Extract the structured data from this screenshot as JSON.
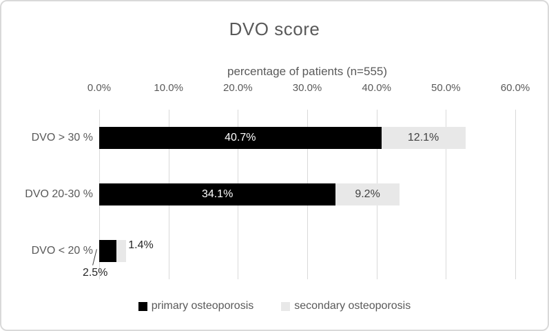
{
  "frame": {
    "background": "#ffffff",
    "border_color": "#d9d9d9"
  },
  "chart_data": {
    "type": "bar",
    "orientation": "horizontal",
    "stacked": true,
    "title": "DVO score",
    "x_axis_title": "percentage of patients (n=555)",
    "categories": [
      "DVO > 30 %",
      "DVO 20-30 %",
      "DVO < 20 %"
    ],
    "series": [
      {
        "name": "primary osteoporosis",
        "color": "#000000",
        "label_color": "#ffffff",
        "values": [
          40.7,
          34.1,
          2.5
        ],
        "labels": [
          "40.7%",
          "34.1%",
          "2.5%"
        ]
      },
      {
        "name": "secondary osteoporosis",
        "color": "#e8e8e8",
        "label_color": "#404040",
        "values": [
          12.1,
          9.2,
          1.4
        ],
        "labels": [
          "12.1%",
          "9.2%",
          "1.4%"
        ]
      }
    ],
    "x_ticks": [
      "0.0%",
      "10.0%",
      "20.0%",
      "30.0%",
      "40.0%",
      "50.0%",
      "60.0%"
    ],
    "xlim": [
      0,
      60
    ],
    "gridlines": "vertical",
    "grid_color": "#d9d9d9",
    "axis_position": "top",
    "legend_position": "bottom",
    "text_color": "#595959",
    "outside_label_color": "#262626"
  }
}
